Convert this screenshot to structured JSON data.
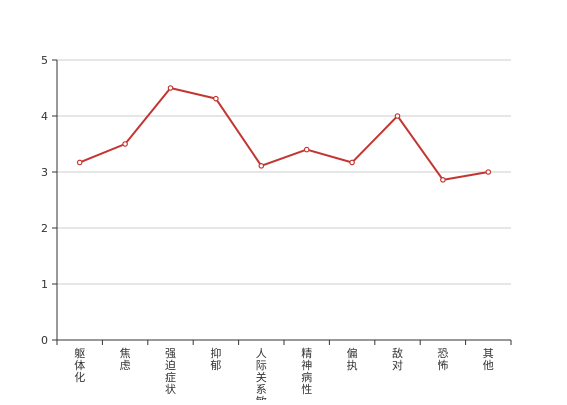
{
  "chart_data": {
    "type": "line",
    "categories": [
      "躯体化",
      "焦虑",
      "强迫症状",
      "抑郁",
      "人际关系敏感",
      "精神病性",
      "偏执",
      "敌对",
      "恐怖",
      "其他"
    ],
    "series": [
      {
        "values": [
          3.17,
          3.5,
          4.5,
          4.31,
          3.11,
          3.4,
          3.17,
          4.0,
          2.86,
          3.0
        ]
      }
    ],
    "ylim": [
      0,
      5
    ],
    "yticks": [
      0,
      1,
      2,
      3,
      4,
      5
    ],
    "grid": true,
    "title": "",
    "xlabel": "",
    "ylabel": "",
    "colors": {
      "line": "#c23531",
      "grid": "#cccccc",
      "axis": "#333333",
      "marker_fill": "#ffffff"
    }
  }
}
